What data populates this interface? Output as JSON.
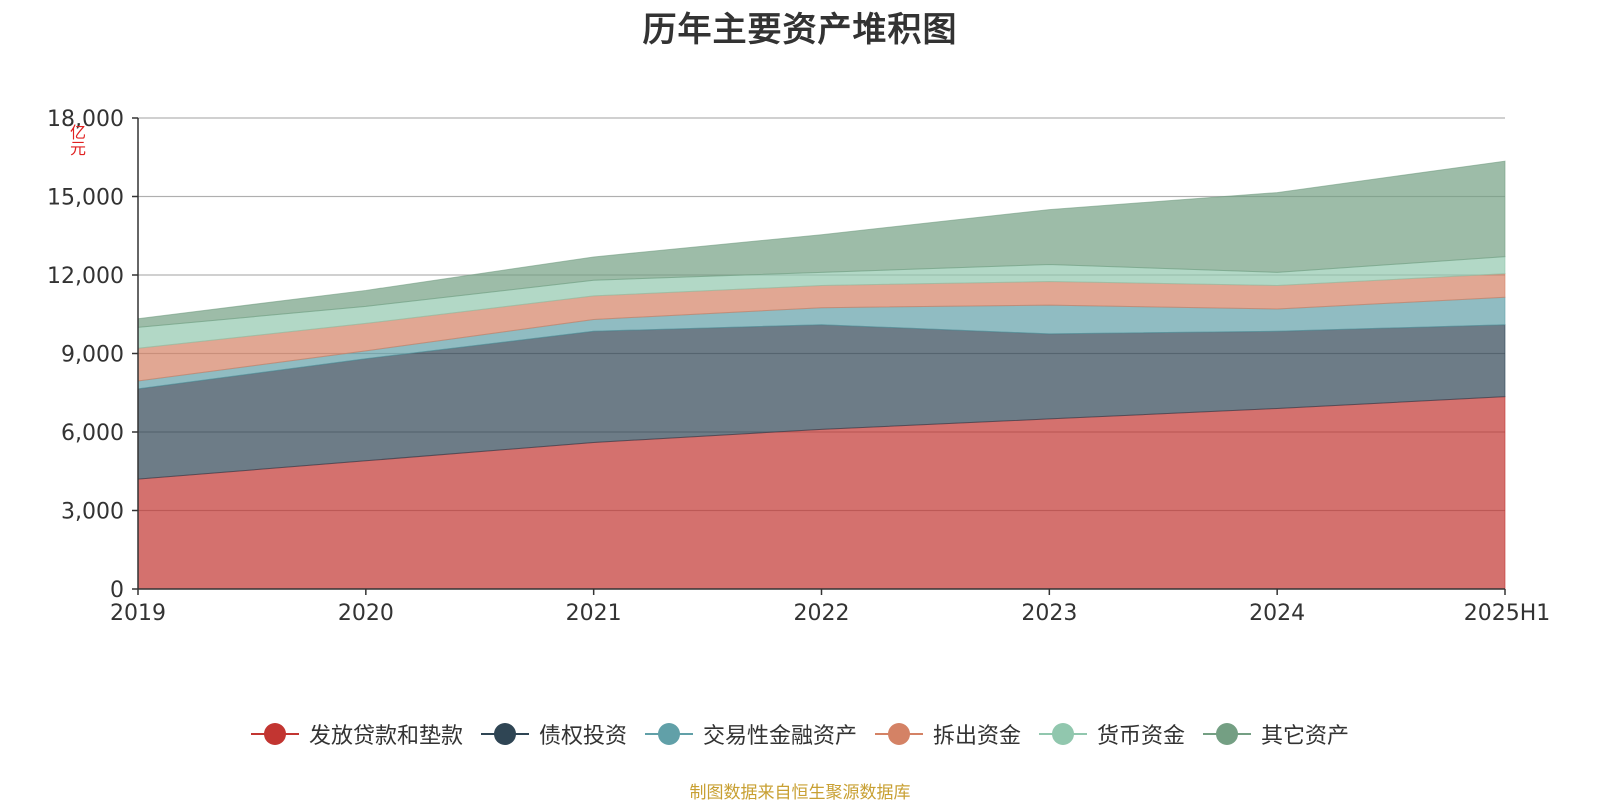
{
  "title": "历年主要资产堆积图",
  "source": "制图数据来自恒生聚源数据库",
  "chart_data": {
    "type": "area",
    "stacked": true,
    "title": "历年主要资产堆积图",
    "ylabel": "亿元",
    "xlabel": "",
    "categories": [
      "2019",
      "2020",
      "2021",
      "2022",
      "2023",
      "2024",
      "2025H1"
    ],
    "ylim": [
      0,
      18000
    ],
    "yticks": [
      0,
      3000,
      6000,
      9000,
      12000,
      15000,
      18000
    ],
    "ytick_labels": [
      "0",
      "3,000",
      "6,000",
      "9,000",
      "12,000",
      "15,000",
      "18,000"
    ],
    "grid": true,
    "legend_position": "bottom",
    "series": [
      {
        "name": "发放贷款和垫款",
        "color": "#c23531",
        "values": [
          4200,
          4900,
          5600,
          6100,
          6500,
          6900,
          7350
        ]
      },
      {
        "name": "债权投资",
        "color": "#2f4554",
        "values": [
          3450,
          3900,
          4250,
          4000,
          3250,
          2950,
          2750
        ]
      },
      {
        "name": "交易性金融资产",
        "color": "#61a0a8",
        "values": [
          300,
          300,
          450,
          650,
          1100,
          850,
          1050
        ]
      },
      {
        "name": "拆出资金",
        "color": "#d48265",
        "values": [
          1250,
          1050,
          900,
          850,
          900,
          900,
          900
        ]
      },
      {
        "name": "货币资金",
        "color": "#91c7ae",
        "values": [
          800,
          650,
          600,
          500,
          650,
          500,
          650
        ]
      },
      {
        "name": "其它资产",
        "color": "#749f83",
        "values": [
          330,
          610,
          890,
          1440,
          2100,
          3050,
          3650
        ]
      }
    ]
  }
}
